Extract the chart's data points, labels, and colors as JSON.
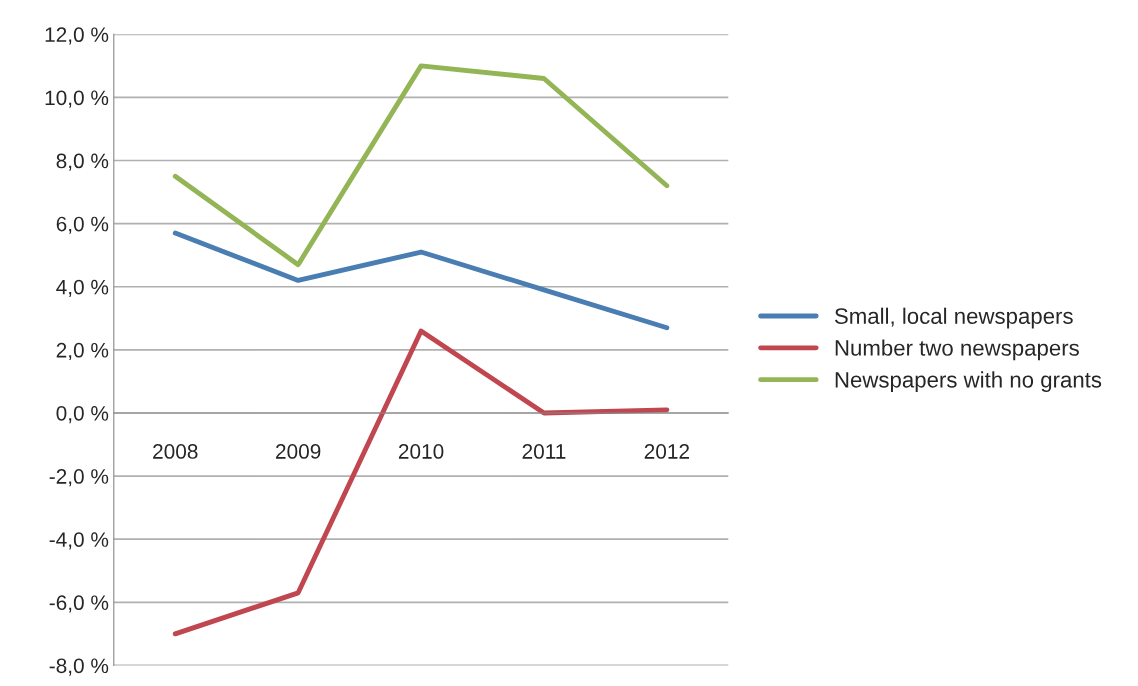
{
  "chart_data": {
    "type": "line",
    "categories": [
      "2008",
      "2009",
      "2010",
      "2011",
      "2012"
    ],
    "series": [
      {
        "name": "Small, local newspapers",
        "color": "#4a7eb3",
        "values": [
          5.7,
          4.2,
          5.1,
          3.9,
          2.7
        ]
      },
      {
        "name": "Number two newspapers",
        "color": "#c0464f",
        "values": [
          -7.0,
          -5.7,
          2.6,
          0.0,
          0.1
        ]
      },
      {
        "name": "Newspapers with no grants",
        "color": "#93b556",
        "values": [
          7.5,
          4.7,
          11.0,
          10.6,
          7.2
        ]
      }
    ],
    "ylim": [
      -8,
      12
    ],
    "yticks": [
      {
        "value": -8,
        "label": "-8,0 %"
      },
      {
        "value": -6,
        "label": "-6,0 %"
      },
      {
        "value": -4,
        "label": "-4,0 %"
      },
      {
        "value": -2,
        "label": "-2,0 %"
      },
      {
        "value": 0,
        "label": "0,0 %"
      },
      {
        "value": 2,
        "label": "2,0 %"
      },
      {
        "value": 4,
        "label": "4,0 %"
      },
      {
        "value": 6,
        "label": "6,0 %"
      },
      {
        "value": 8,
        "label": "8,0 %"
      },
      {
        "value": 10,
        "label": "10,0 %"
      },
      {
        "value": 12,
        "label": "12,0 %"
      }
    ],
    "grid": "y",
    "legend": "right",
    "marker": "none",
    "line_style": "solid"
  }
}
